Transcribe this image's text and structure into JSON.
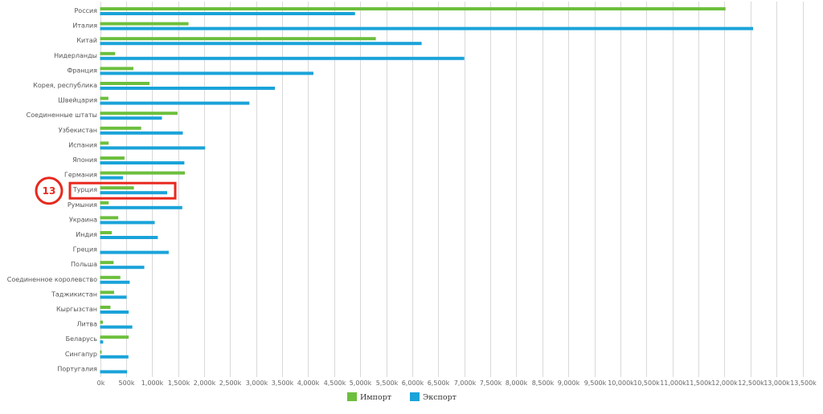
{
  "chart_data": {
    "type": "bar",
    "orientation": "horizontal",
    "categories": [
      "Россия",
      "Италия",
      "Китай",
      "Нидерланды",
      "Франция",
      "Корея, республика",
      "Швейцария",
      "Соединенные штаты",
      "Узбекистан",
      "Испания",
      "Япония",
      "Германия",
      "Турция",
      "Румыния",
      "Украина",
      "Индия",
      "Греция",
      "Польша",
      "Соединенное королевство",
      "Таджикистан",
      "Кыргызстан",
      "Литва",
      "Беларусь",
      "Сингапур",
      "Португалия"
    ],
    "series": [
      {
        "name": "Импорт",
        "color": "#6cbf3d",
        "values": [
          12020,
          1700,
          5300,
          290,
          640,
          950,
          160,
          1490,
          790,
          165,
          470,
          1630,
          650,
          165,
          350,
          225,
          0,
          260,
          390,
          270,
          200,
          55,
          550,
          30,
          0
        ]
      },
      {
        "name": "Экспорт",
        "color": "#1aa3d9",
        "values": [
          4900,
          12550,
          6180,
          7000,
          4100,
          3360,
          2870,
          1190,
          1590,
          2020,
          1620,
          440,
          1290,
          1580,
          1050,
          1110,
          1320,
          850,
          570,
          510,
          550,
          620,
          60,
          545,
          520
        ]
      }
    ],
    "xlim": [
      0,
      13500
    ],
    "xticks": [
      0,
      500,
      1000,
      1500,
      2000,
      2500,
      3000,
      3500,
      4000,
      4500,
      5000,
      5500,
      6000,
      6500,
      7000,
      7500,
      8000,
      8500,
      9000,
      9500,
      10000,
      10500,
      11000,
      11500,
      12000,
      12500,
      13000,
      13500
    ],
    "xtick_labels": [
      "0k",
      "500k",
      "1,000k",
      "1,500k",
      "2,000k",
      "2,500k",
      "3,000k",
      "3,500k",
      "4,000k",
      "4,500k",
      "5,000k",
      "5,500k",
      "6,000k",
      "6,500k",
      "7,000k",
      "7,500k",
      "8,000k",
      "8,500k",
      "9,000k",
      "9,500k",
      "10,000k",
      "10,500k",
      "11,000k",
      "11,500k",
      "12,000k",
      "12,500k",
      "13,000k",
      "13,500k"
    ],
    "grid": true,
    "legend_position": "bottom-center",
    "annotation": {
      "label": "13",
      "category": "Турция",
      "color": "#e8281e"
    }
  }
}
